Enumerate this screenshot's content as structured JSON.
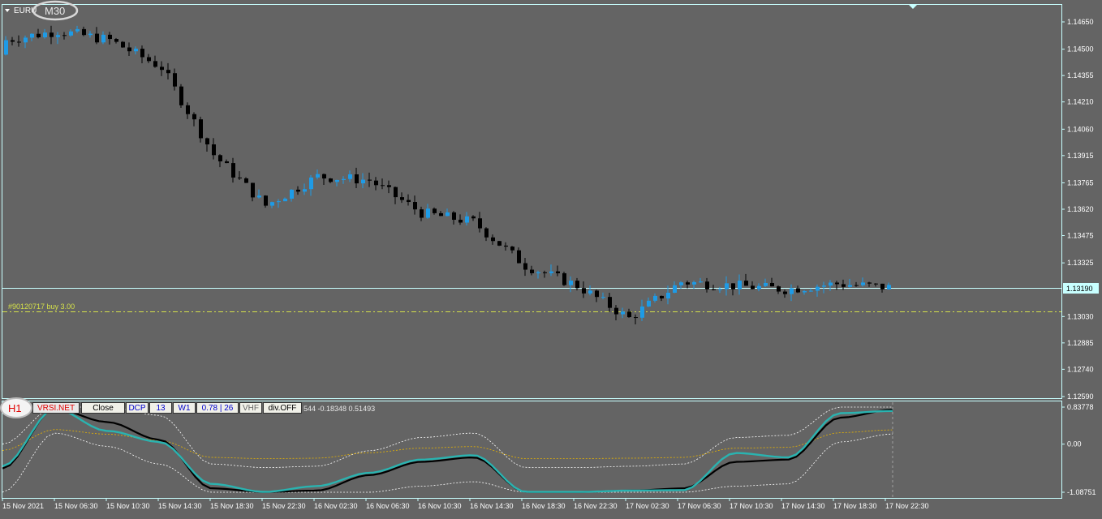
{
  "chart": {
    "symbol": "EURU",
    "timeframe_badge": "M30",
    "order_line_label": "#90120717 buy 3.00",
    "current_price_label": "1.13190",
    "price_ticks": [
      "1.14650",
      "1.14500",
      "1.14355",
      "1.14210",
      "1.14060",
      "1.13915",
      "1.13765",
      "1.13620",
      "1.13475",
      "1.13325",
      "1.13030",
      "1.12885",
      "1.12740",
      "1.12590"
    ],
    "time_ticks": [
      "15 Nov 2021",
      "15 Nov 06:30",
      "15 Nov 10:30",
      "15 Nov 14:30",
      "15 Nov 18:30",
      "15 Nov 22:30",
      "16 Nov 02:30",
      "16 Nov 06:30",
      "16 Nov 10:30",
      "16 Nov 14:30",
      "16 Nov 18:30",
      "16 Nov 22:30",
      "17 Nov 02:30",
      "17 Nov 06:30",
      "17 Nov 10:30",
      "17 Nov 14:30",
      "17 Nov 18:30",
      "17 Nov 22:30"
    ],
    "colors": {
      "background": "#646464",
      "bull": "#1e9be6",
      "bear": "#000000",
      "grid": "#c8ffff",
      "order_line": "#d4e04a"
    }
  },
  "indicator": {
    "timeframe_badge": "H1",
    "name": "VRSI.NET",
    "toolbar": [
      "Close",
      "DCP",
      "13",
      "W1",
      "0.78 | 26",
      "VHF",
      "div.OFF"
    ],
    "readout": "544 -0.18348 0.51493",
    "scale_ticks": [
      "0.83778",
      "0.00",
      "-1.08751"
    ],
    "colors": {
      "main": "#000000",
      "signal": "#2ab3b0",
      "band_inner": "#e8b400",
      "band_outer": "#ffffff"
    }
  },
  "chart_data": [
    {
      "type": "candlestick",
      "title": "EURU, M30",
      "x": [
        "15 Nov 2021",
        "15 Nov 06:30",
        "15 Nov 10:30",
        "15 Nov 14:30",
        "15 Nov 18:30",
        "15 Nov 22:30",
        "16 Nov 02:30",
        "16 Nov 06:30",
        "16 Nov 10:30",
        "16 Nov 14:30",
        "16 Nov 18:30",
        "16 Nov 22:30",
        "17 Nov 02:30",
        "17 Nov 06:30",
        "17 Nov 10:30",
        "17 Nov 14:30",
        "17 Nov 18:30",
        "17 Nov 22:30"
      ],
      "close": [
        1.1455,
        1.146,
        1.1455,
        1.144,
        1.1392,
        1.1364,
        1.138,
        1.1378,
        1.136,
        1.1355,
        1.1331,
        1.132,
        1.1302,
        1.1322,
        1.132,
        1.1318,
        1.1321,
        1.1319
      ],
      "ylim": [
        1.1259,
        1.1465
      ],
      "current_price": 1.1319,
      "order_price": 1.1307
    },
    {
      "type": "line",
      "title": "VRSI.NET",
      "series": [
        {
          "name": "main",
          "values": [
            -0.55,
            0.8,
            0.5,
            0.1,
            -1.0,
            -1.08,
            -1.05,
            -0.7,
            -0.4,
            -0.3,
            -1.08,
            -1.08,
            -1.05,
            -1.0,
            -0.4,
            -0.35,
            0.6,
            0.78
          ]
        },
        {
          "name": "signal",
          "values": [
            -0.5,
            0.8,
            0.3,
            0.05,
            -0.9,
            -1.08,
            -0.95,
            -0.65,
            -0.35,
            -0.25,
            -1.08,
            -1.08,
            -1.05,
            -1.04,
            -0.2,
            -0.3,
            0.7,
            0.75
          ]
        }
      ],
      "ylim": [
        -1.08751,
        0.83778
      ]
    }
  ]
}
